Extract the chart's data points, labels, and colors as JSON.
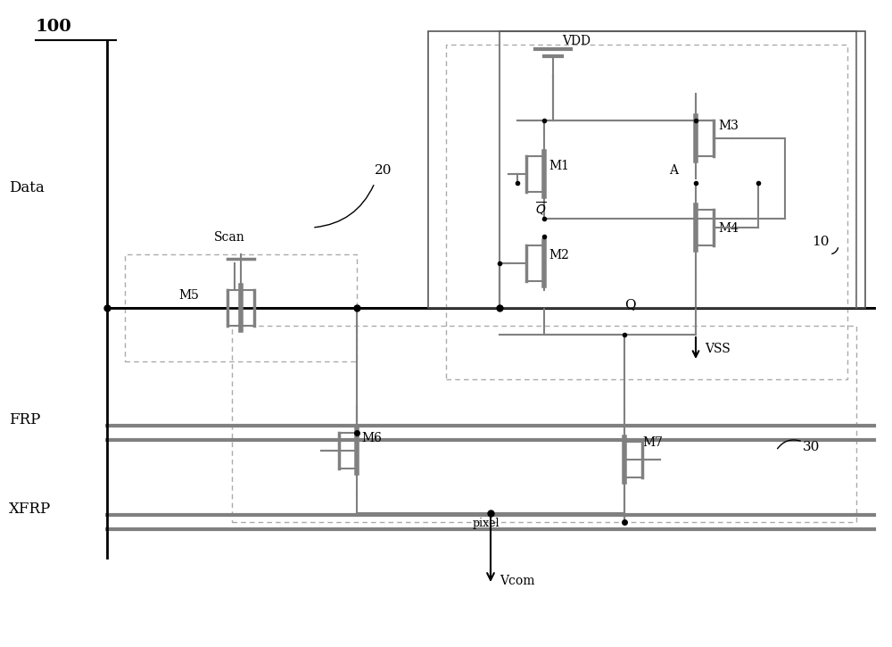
{
  "bg_color": "#ffffff",
  "line_color": "#000000",
  "gray_color": "#808080",
  "dashed_color": "#999999",
  "title_label": "100",
  "label_10": "10",
  "label_20": "20",
  "label_30": "30",
  "fig_width": 10.0,
  "fig_height": 7.25
}
